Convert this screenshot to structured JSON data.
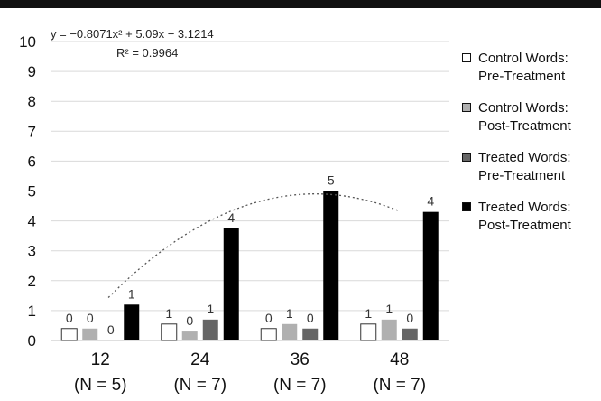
{
  "chart_data": {
    "type": "bar",
    "categories": [
      "12\n(N = 5)",
      "24\n(N = 7)",
      "36\n(N = 7)",
      "48\n(N = 7)"
    ],
    "x_tick_labels": [
      {
        "value": "12",
        "n": "(N = 5)"
      },
      {
        "value": "24",
        "n": "(N = 7)"
      },
      {
        "value": "36",
        "n": "(N = 7)"
      },
      {
        "value": "48",
        "n": "(N = 7)"
      }
    ],
    "ylim": [
      0,
      10
    ],
    "yticks": [
      0,
      1,
      2,
      3,
      4,
      5,
      6,
      7,
      8,
      9,
      10
    ],
    "series": [
      {
        "name": "Control Words: Pre-Treatment",
        "legend_lines": [
          "Control Words:",
          "Pre-Treatment"
        ],
        "color": "#ffffff",
        "values": [
          0.4,
          0.55,
          0.4,
          0.55
        ],
        "labels": [
          "0",
          "1",
          "0",
          "1"
        ]
      },
      {
        "name": "Control Words: Post-Treatment",
        "legend_lines": [
          "Control Words:",
          "Post-Treatment"
        ],
        "color": "#b0b0b0",
        "values": [
          0.4,
          0.3,
          0.55,
          0.7
        ],
        "labels": [
          "0",
          "0",
          "1",
          "1"
        ]
      },
      {
        "name": "Treated Words: Pre-Treatment",
        "legend_lines": [
          "Treated Words:",
          "Pre-Treatment"
        ],
        "color": "#666666",
        "values": [
          0,
          0.7,
          0.4,
          0.4
        ],
        "labels": [
          "0",
          "1",
          "0",
          "0"
        ]
      },
      {
        "name": "Treated Words: Post-Treatment",
        "legend_lines": [
          "Treated Words:",
          "Post-Treatment"
        ],
        "color": "#000000",
        "values": [
          1.2,
          3.75,
          5.0,
          4.3
        ],
        "labels": [
          "1",
          "4",
          "5",
          "4"
        ]
      }
    ],
    "trendline": {
      "type": "polynomial",
      "coefficients": [
        -0.8071,
        5.09,
        -3.1214
      ],
      "equation": "y = −0.8071x² + 5.09x − 3.1214",
      "r2": "R² = 0.9964",
      "style": "dotted"
    },
    "legend_position": "right",
    "grid": true
  }
}
